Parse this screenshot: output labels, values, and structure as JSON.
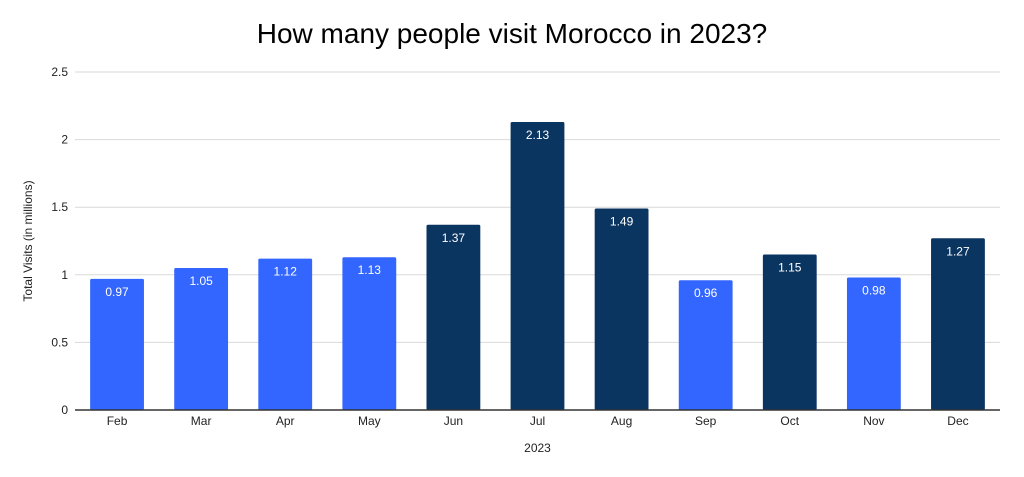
{
  "chart_data": {
    "type": "bar",
    "title": "How many people visit Morocco in 2023?",
    "xlabel": "2023",
    "ylabel": "Total Visits (in millions)",
    "categories": [
      "Feb",
      "Mar",
      "Apr",
      "May",
      "Jun",
      "Jul",
      "Aug",
      "Sep",
      "Oct",
      "Nov",
      "Dec"
    ],
    "values": [
      0.97,
      1.05,
      1.12,
      1.13,
      1.37,
      2.13,
      1.49,
      0.96,
      1.15,
      0.98,
      1.27
    ],
    "value_labels": [
      "0.97",
      "1.05",
      "1.12",
      "1.13",
      "1.37",
      "2.13",
      "1.49",
      "0.96",
      "1.15",
      "0.98",
      "1.27"
    ],
    "ylim": [
      0,
      2.5
    ],
    "yticks": [
      0,
      0.5,
      1,
      1.5,
      2,
      2.5
    ],
    "ytick_labels": [
      "0",
      "0.5",
      "1",
      "1.5",
      "2",
      "2.5"
    ],
    "grid": true,
    "legend": "none",
    "colors": {
      "light_bar": "#3366ff",
      "dark_bar": "#0b3561",
      "grid": "#d9d9d9",
      "baseline": "#333333"
    },
    "bar_colors": [
      "#3366ff",
      "#3366ff",
      "#3366ff",
      "#3366ff",
      "#0b3561",
      "#0b3561",
      "#0b3561",
      "#3366ff",
      "#0b3561",
      "#3366ff",
      "#0b3561"
    ]
  }
}
